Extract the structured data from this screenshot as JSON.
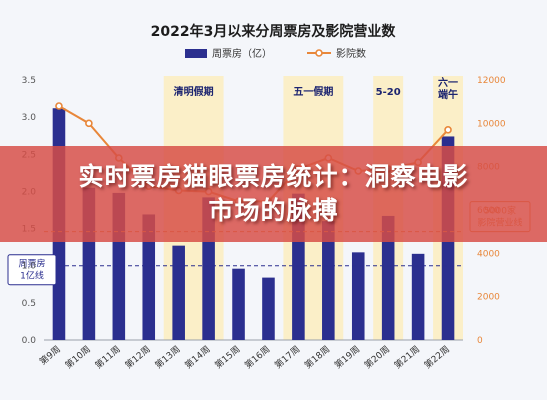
{
  "chart_data": {
    "type": "bar",
    "title": "2022年3月以来分周票房及影院营业数",
    "categories": [
      "第9周",
      "第10周",
      "第11周",
      "第12周",
      "第13周",
      "第14周",
      "第15周",
      "第16周",
      "第17周",
      "第18周",
      "第19周",
      "第20周",
      "第21周",
      "第22周"
    ],
    "series": [
      {
        "name": "周票房（亿）",
        "type": "bar",
        "axis": "left",
        "color": "#2b2f8f",
        "values": [
          3.12,
          2.05,
          1.98,
          1.69,
          1.27,
          1.92,
          0.96,
          0.84,
          1.97,
          1.6,
          1.18,
          1.67,
          1.16,
          2.74
        ]
      },
      {
        "name": "影院数",
        "type": "line",
        "axis": "right",
        "color": "#e8873a",
        "values": [
          10800,
          10000,
          8400,
          7100,
          6900,
          6850,
          6400,
          6400,
          7900,
          8400,
          7800,
          7900,
          8200,
          9700
        ]
      }
    ],
    "y_left": {
      "min": 0,
      "max": 3.5,
      "ticks": [
        "0.0",
        "0.5",
        "1.0",
        "1.5",
        "2.0",
        "2.5",
        "3.0",
        "3.5"
      ]
    },
    "y_right": {
      "min": 0,
      "max": 12000,
      "ticks": [
        "0",
        "2000",
        "4000",
        "6000",
        "8000",
        "10000",
        "12000"
      ]
    },
    "holiday_bands": [
      {
        "label": "清明假期",
        "from_index": 4,
        "to_index": 5
      },
      {
        "label": "五一假期",
        "from_index": 8,
        "to_index": 9
      },
      {
        "label": "5-20",
        "from_index": 11,
        "to_index": 11
      },
      {
        "label": "六一\n端午",
        "from_index": 13,
        "to_index": 13
      }
    ],
    "reference_lines": [
      {
        "label": "周票房\n1亿线",
        "axis": "left",
        "value": 1.0,
        "color": "#2b2f8f"
      },
      {
        "label": "5000家\n影院营业线",
        "axis": "right",
        "value": 5000,
        "color": "#e8873a"
      }
    ],
    "legend_position": "top-center",
    "grid": false
  },
  "overlay": {
    "line1": "实时票房猫眼票房统计：洞察电影",
    "line2": "市场的脉搏"
  },
  "colors": {
    "band": "#fbefc8",
    "bar": "#2b2f8f",
    "line": "#e8873a",
    "banner": "#d64e46"
  }
}
